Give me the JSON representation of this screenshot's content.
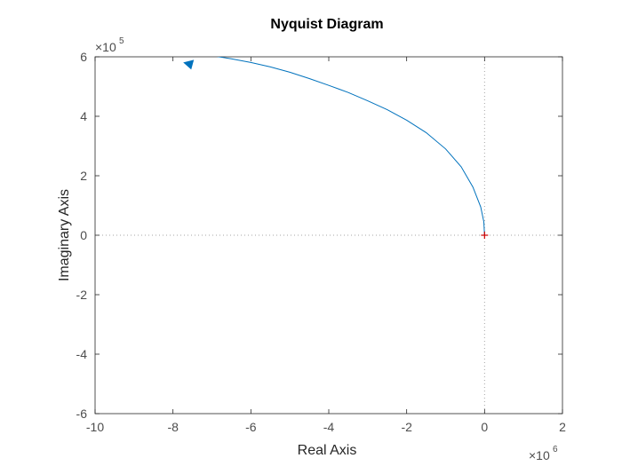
{
  "chart_data": {
    "type": "line",
    "title": "Nyquist Diagram",
    "xlabel": "Real Axis",
    "ylabel": "Imaginary Axis",
    "xlim": [
      -10,
      2
    ],
    "ylim": [
      -6,
      6
    ],
    "x_multiplier": {
      "base": "×10",
      "exponent": "6"
    },
    "y_multiplier": {
      "base": "×10",
      "exponent": "5"
    },
    "xticks": [
      -10,
      -8,
      -6,
      -4,
      -2,
      0,
      2
    ],
    "yticks": [
      -6,
      -4,
      -2,
      0,
      2,
      4,
      6
    ],
    "grid": false,
    "reference_lines": {
      "x": 0,
      "y": 0,
      "style": "dotted"
    },
    "critical_point": {
      "x": 0,
      "y": 0,
      "marker": "+",
      "color": "#cc0000"
    },
    "series": [
      {
        "color": "#0072bd",
        "x_scaled_1e6": [
          0,
          -0.02,
          -0.1,
          -0.3,
          -0.6,
          -1.0,
          -1.5,
          -2.0,
          -2.5,
          -3.0,
          -3.5,
          -4.0,
          -4.5,
          -5.0,
          -5.5,
          -6.0,
          -6.5,
          -7.0,
          -7.5,
          -8.0,
          -8.6
        ],
        "y_scaled_1e5": [
          0,
          0.45,
          0.95,
          1.62,
          2.3,
          2.9,
          3.45,
          3.87,
          4.22,
          4.52,
          4.8,
          5.04,
          5.27,
          5.48,
          5.66,
          5.81,
          5.93,
          6.04,
          6.14,
          6.24,
          6.34
        ],
        "arrow": {
          "x_scaled_1e6": -7.6,
          "y_scaled_1e5": 5.72,
          "direction": "left"
        }
      }
    ]
  },
  "colors": {
    "line": "#0072bd",
    "critical_point": "#cc0000",
    "axes": "#262626",
    "reference": "#a6a6a6"
  }
}
